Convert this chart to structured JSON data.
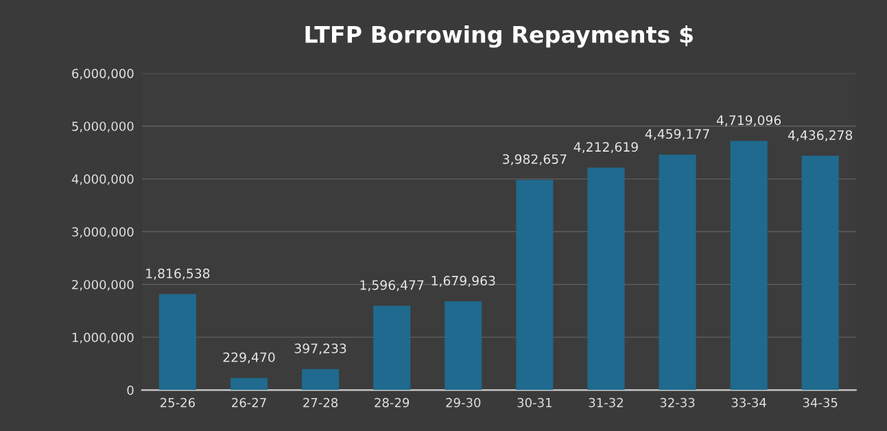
{
  "chart_data": {
    "type": "bar",
    "title": "LTFP Borrowing Repayments $",
    "categories": [
      "25-26",
      "26-27",
      "27-28",
      "28-29",
      "29-30",
      "30-31",
      "31-32",
      "32-33",
      "33-34",
      "34-35"
    ],
    "values": [
      1816538,
      229470,
      397233,
      1596477,
      1679963,
      3982657,
      4212619,
      4459177,
      4719096,
      4436278
    ],
    "color": "#1f6a8e",
    "ylim": [
      0,
      6000000
    ],
    "yticks": [
      {
        "value": 0,
        "label": "0"
      },
      {
        "value": 1000000,
        "label": "1,000,000"
      },
      {
        "value": 2000000,
        "label": "2,000,000"
      },
      {
        "value": 3000000,
        "label": "3,000,000"
      },
      {
        "value": 4000000,
        "label": "4,000,000"
      },
      {
        "value": 5000000,
        "label": "5,000,000"
      },
      {
        "value": 6000000,
        "label": "6,000,000"
      }
    ],
    "value_labels": [
      "1,816,538",
      "229,470",
      "397,233",
      "1,596,477",
      "1,679,963",
      "3,982,657",
      "4,212,619",
      "4,459,177",
      "4,719,096",
      "4,436,278"
    ],
    "grid": "y",
    "legend": false
  }
}
